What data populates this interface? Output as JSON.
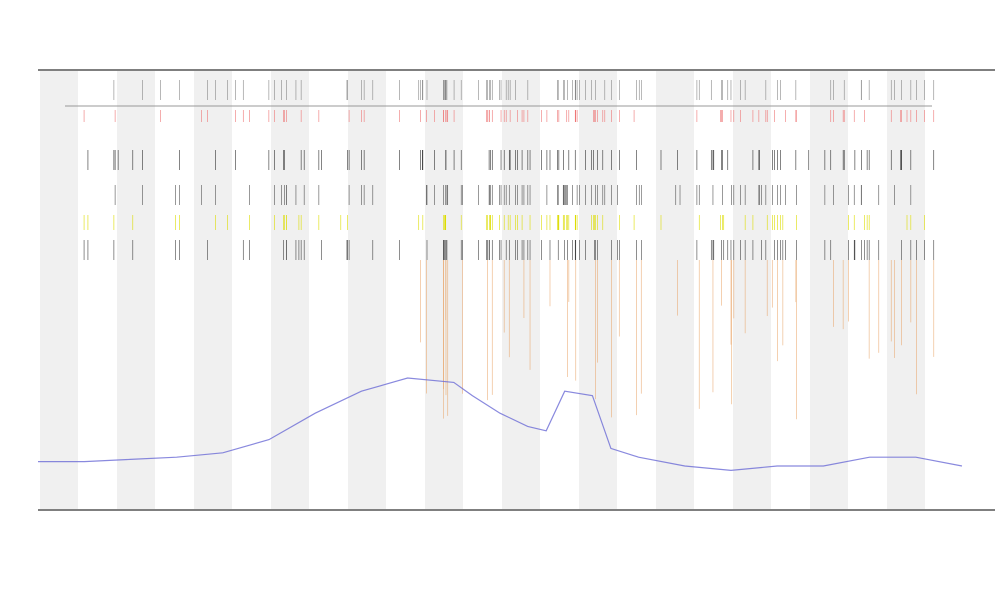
{
  "chart_data": {
    "type": "line",
    "x": [
      0,
      5,
      10,
      15,
      20,
      25,
      30,
      35,
      40,
      45,
      47,
      50,
      53,
      55,
      57,
      60,
      62,
      65,
      70,
      75,
      80,
      85,
      90,
      95,
      100
    ],
    "series": [
      {
        "color": "#6b6bd6",
        "values": [
          11,
          11,
          11.5,
          12,
          13,
          16,
          22,
          27,
          30,
          29,
          26,
          22,
          19,
          18,
          27,
          26,
          14,
          12,
          10,
          9,
          10,
          10,
          12,
          12,
          10
        ]
      }
    ],
    "xlim": [
      0,
      100
    ],
    "ylim": [
      0,
      100
    ]
  }
}
